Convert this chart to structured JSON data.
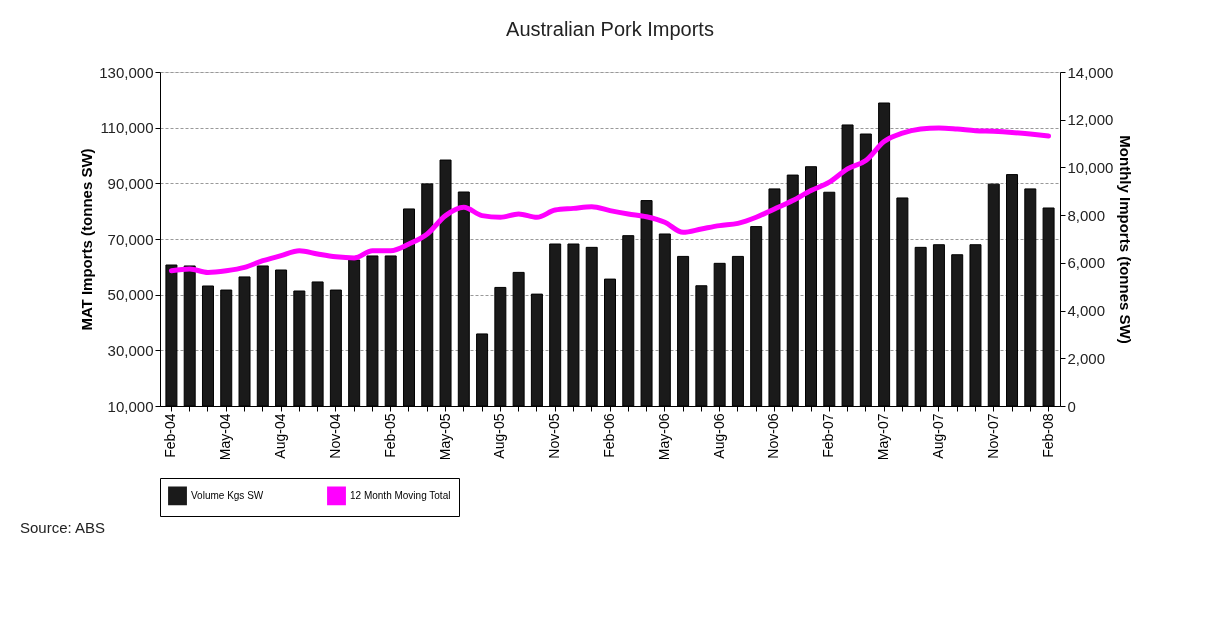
{
  "chart_data": {
    "type": "bar",
    "title": "Australian Pork Imports",
    "ylabel": "MAT Imports (tonnes SW)",
    "y2label": "Monthly Imports (tonnes SW)",
    "categories": [
      "Feb-04",
      null,
      null,
      "May-04",
      null,
      null,
      "Aug-04",
      null,
      null,
      "Nov-04",
      null,
      null,
      "Feb-05",
      null,
      null,
      "May-05",
      null,
      null,
      "Aug-05",
      null,
      null,
      "Nov-05",
      null,
      null,
      "Feb-06",
      null,
      null,
      "May-06",
      null,
      null,
      "Aug-06",
      null,
      null,
      "Nov-06",
      null,
      null,
      "Feb-07",
      null,
      null,
      "May-07",
      null,
      null,
      "Aug-07",
      null,
      null,
      "Nov-07",
      null,
      null,
      "Feb-08"
    ],
    "series": [
      {
        "name": "Volume Kgs SW",
        "axis": "y2",
        "color": "#1a1a1a",
        "values": [
          5910,
          5870,
          5030,
          4860,
          5410,
          5870,
          5700,
          4820,
          5200,
          4860,
          6120,
          6290,
          6290,
          8260,
          9310,
          10310,
          8970,
          3020,
          4970,
          5600,
          4690,
          6790,
          6790,
          6650,
          5320,
          7140,
          8610,
          7210,
          6270,
          5040,
          5980,
          6270,
          7520,
          9100,
          9680,
          10030,
          8960,
          11780,
          11400,
          12700,
          8720,
          6650,
          6760,
          6340,
          6760,
          9300,
          9700,
          9100,
          8300
        ]
      },
      {
        "name": "12 Month Moving Total",
        "type": "line",
        "color": "#ff00ff",
        "values": [
          58600,
          59200,
          58000,
          58600,
          59800,
          62200,
          64000,
          65800,
          64600,
          63600,
          63200,
          65800,
          65800,
          68200,
          71800,
          78400,
          81400,
          78400,
          77800,
          79000,
          77800,
          80400,
          81000,
          81600,
          80200,
          79000,
          78000,
          76000,
          72400,
          73600,
          74800,
          75600,
          77800,
          80800,
          83800,
          87400,
          90400,
          95200,
          98200,
          105000,
          108000,
          109500,
          109900,
          109500,
          108900,
          108700,
          108300,
          107700,
          107000
        ]
      }
    ],
    "ylim": [
      10000,
      130000
    ],
    "yticks": [
      {
        "value": 10000,
        "label": "10,000"
      },
      {
        "value": 30000,
        "label": "30,000"
      },
      {
        "value": 50000,
        "label": "50,000"
      },
      {
        "value": 70000,
        "label": "70,000"
      },
      {
        "value": 90000,
        "label": "90,000"
      },
      {
        "value": 110000,
        "label": "110,000"
      },
      {
        "value": 130000,
        "label": "130,000"
      }
    ],
    "y2lim": [
      0,
      14000
    ],
    "y2ticks": [
      0,
      {
        "value": 2000,
        "label": "2,000"
      },
      {
        "value": 4000,
        "label": "4,000"
      },
      {
        "value": 6000,
        "label": "6,000"
      },
      {
        "value": 8000,
        "label": "8,000"
      },
      {
        "value": 10000,
        "label": "10,000"
      },
      {
        "value": 12000,
        "label": "12,000"
      },
      {
        "value": 14000,
        "label": "14,000"
      }
    ],
    "grid": "y",
    "legend": "bottom",
    "annotations": [
      "Source: ABS"
    ]
  }
}
